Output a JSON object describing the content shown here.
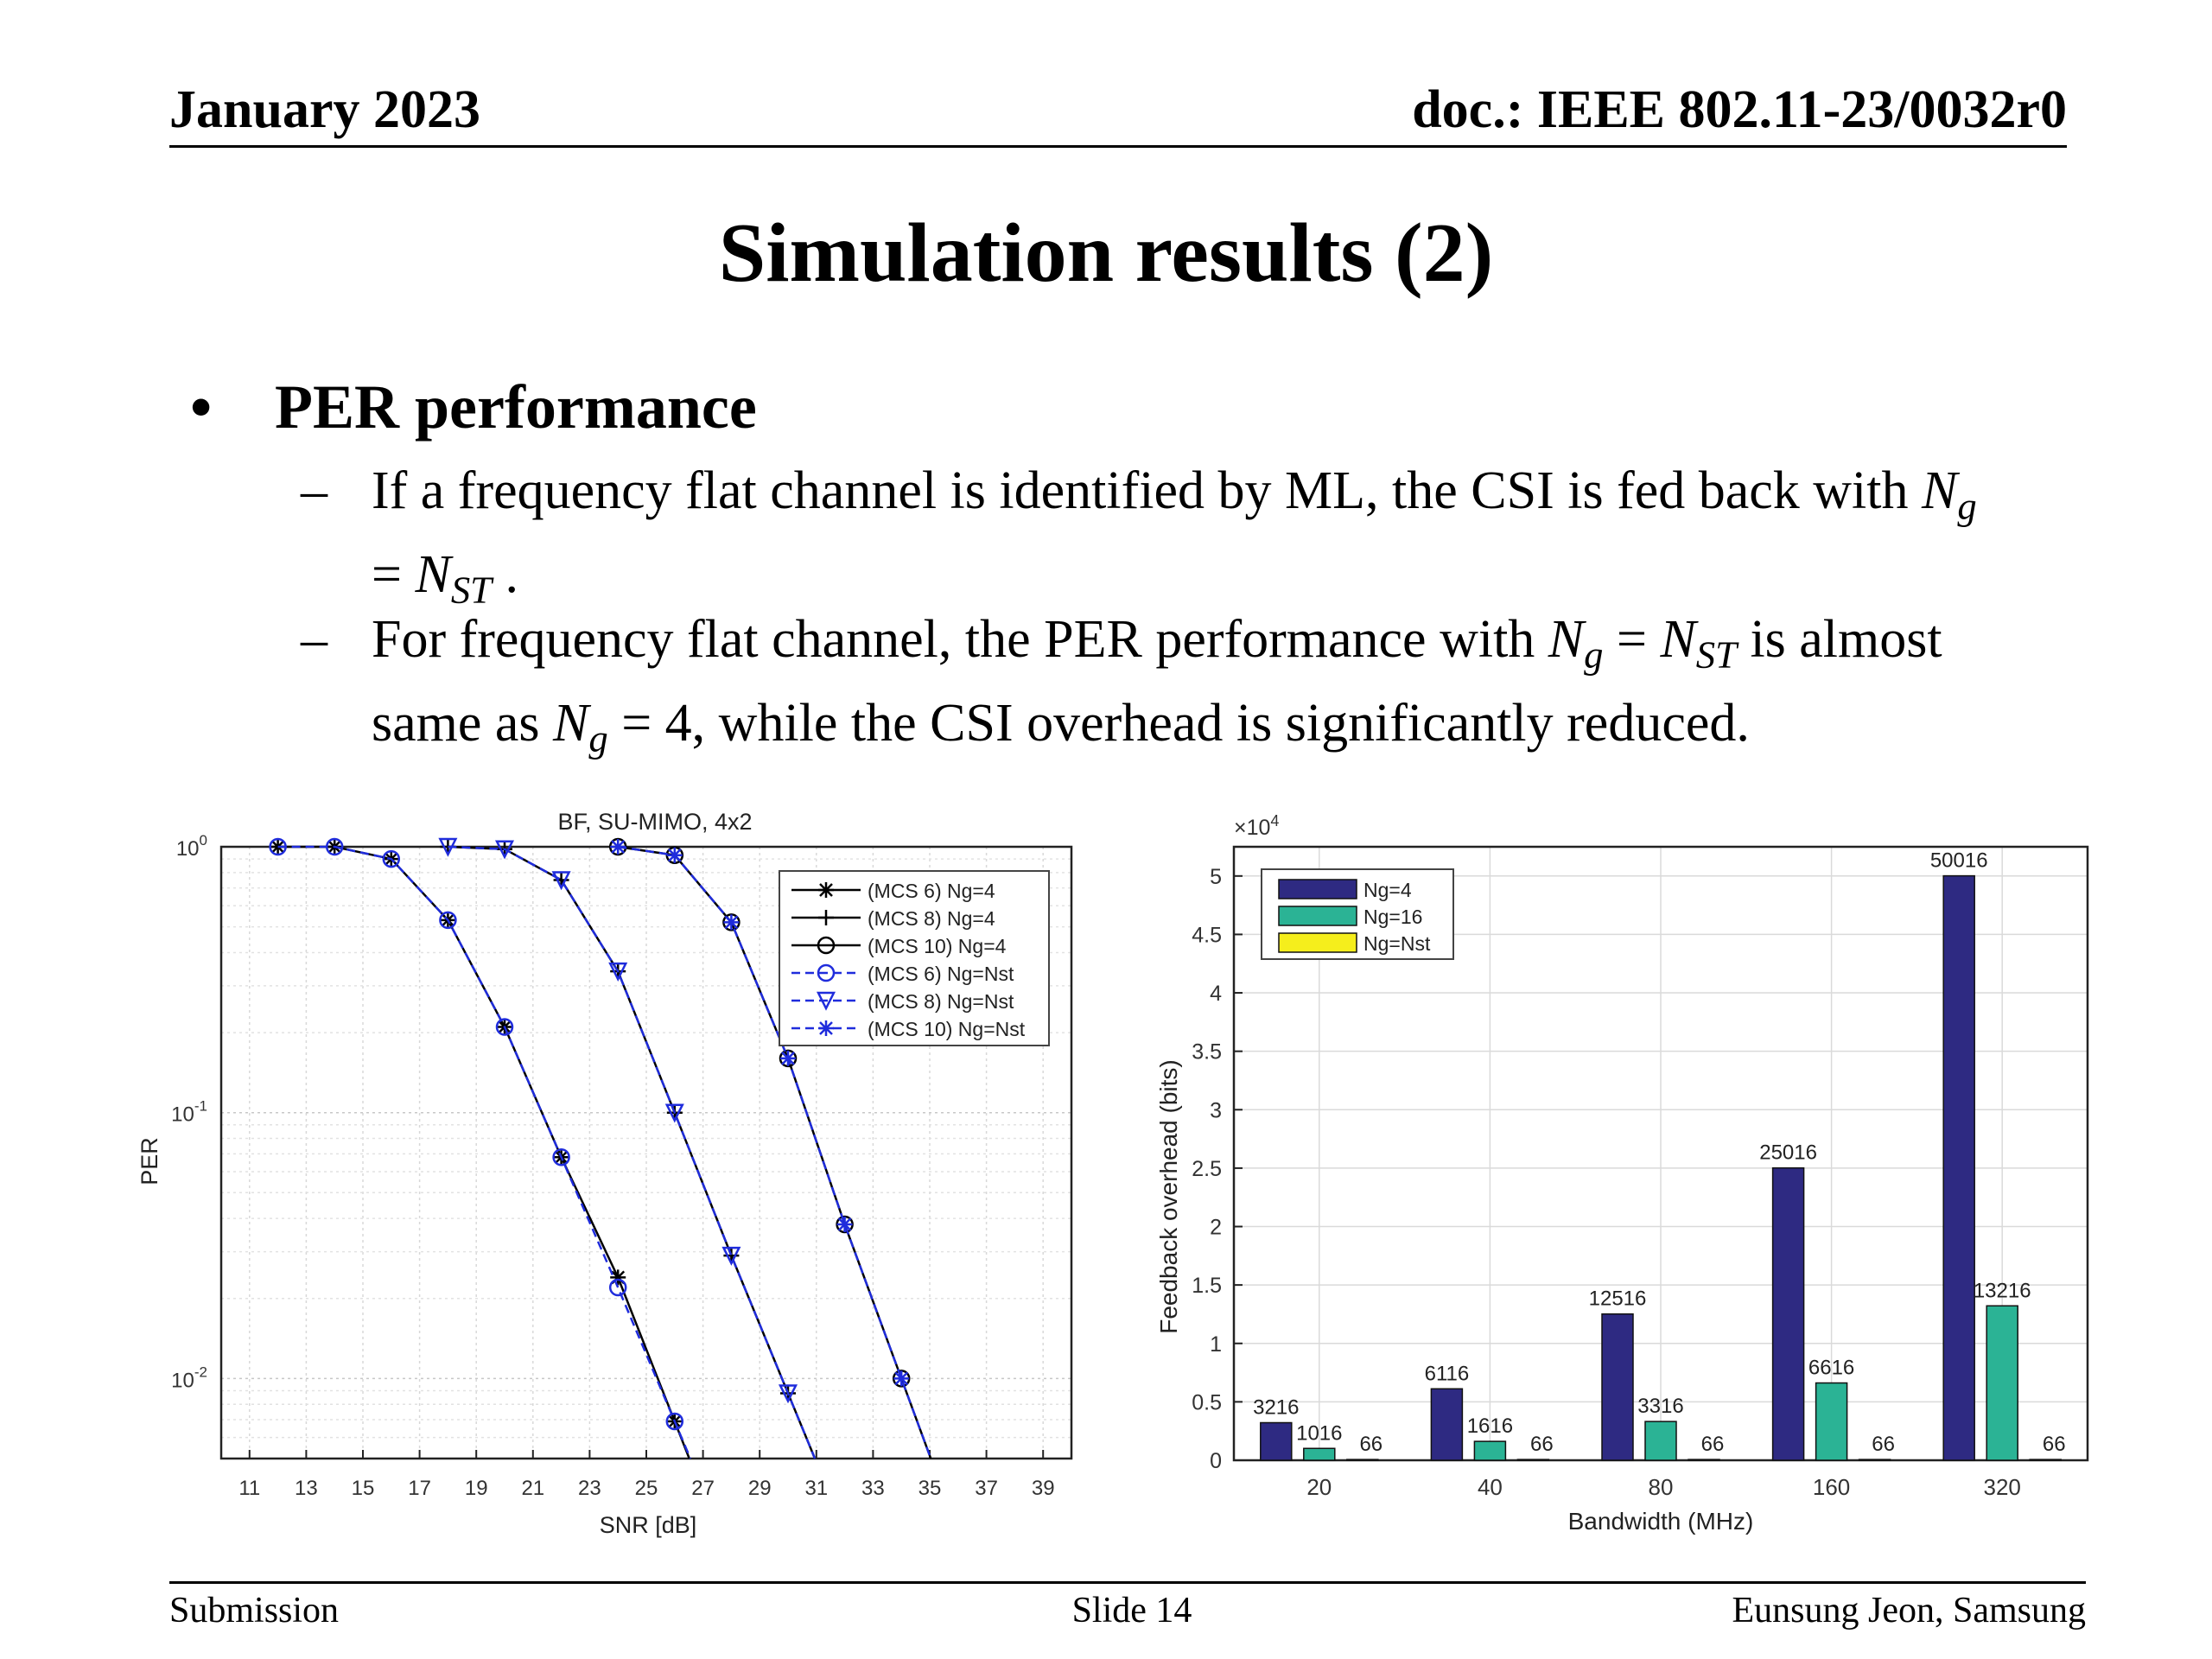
{
  "header": {
    "date": "January 2023",
    "doc": "doc.: IEEE 802.11-23/0032r0"
  },
  "slide": {
    "title": "Simulation results (2)",
    "bullet": "PER performance",
    "sub1": {
      "a": "If a frequency flat channel is identified by ML, the CSI is fed back with ",
      "b": "N",
      "c": "g",
      "d": "= ",
      "e": "N",
      "f": "ST",
      "g": " ."
    },
    "sub2": {
      "a": "For frequency flat channel, the PER performance with ",
      "b": "N",
      "c": "g",
      "d": " = ",
      "e": "N",
      "f": "ST",
      "g": " is almost",
      "h": "same as ",
      "i": "N",
      "j": "g",
      "k": " = 4, while the CSI overhead is significantly reduced."
    }
  },
  "footer": {
    "left": "Submission",
    "center": "Slide 14",
    "right": "Eunsung Jeon, Samsung"
  },
  "chart_data": [
    {
      "type": "line",
      "title": "BF, SU-MIMO, 4x2",
      "xlabel": "SNR [dB]",
      "ylabel": "PER",
      "xlim": [
        10,
        40
      ],
      "ylim": [
        0.005,
        1
      ],
      "yscale": "log",
      "grid": true,
      "xticks": [
        11,
        13,
        15,
        17,
        19,
        21,
        23,
        25,
        27,
        29,
        31,
        33,
        35,
        37,
        39
      ],
      "yticks": [
        {
          "base": "10",
          "exp": "0",
          "value": 1
        },
        {
          "base": "10",
          "exp": "-1",
          "value": 0.1
        },
        {
          "base": "10",
          "exp": "-2",
          "value": 0.01
        }
      ],
      "legend_position": "top-right",
      "series": [
        {
          "name": "(MCS 6) Ng=4",
          "color": "#000000",
          "dash": "",
          "marker": "asterisk",
          "x": [
            12,
            14,
            16,
            18,
            20,
            22,
            24,
            26
          ],
          "y": [
            1,
            1,
            0.9,
            0.53,
            0.21,
            0.068,
            0.024,
            0.0069
          ]
        },
        {
          "name": "(MCS 8) Ng=4",
          "color": "#000000",
          "dash": "",
          "marker": "plus",
          "x": [
            18,
            20,
            22,
            24,
            26,
            28,
            30
          ],
          "y": [
            1,
            0.98,
            0.75,
            0.34,
            0.1,
            0.029,
            0.0088
          ]
        },
        {
          "name": "(MCS 10) Ng=4",
          "color": "#000000",
          "dash": "",
          "marker": "circle",
          "x": [
            24,
            26,
            28,
            30,
            32,
            34
          ],
          "y": [
            1,
            0.93,
            0.52,
            0.16,
            0.038,
            0.01
          ]
        },
        {
          "name": "(MCS 6) Ng=Nst",
          "color": "#1f2cdc",
          "dash": "10 6",
          "marker": "circle",
          "x": [
            12,
            14,
            16,
            18,
            20,
            22,
            24,
            26
          ],
          "y": [
            1,
            1,
            0.9,
            0.53,
            0.21,
            0.068,
            0.022,
            0.0069
          ]
        },
        {
          "name": "(MCS 8) Ng=Nst",
          "color": "#1f2cdc",
          "dash": "10 6",
          "marker": "triangle",
          "x": [
            18,
            20,
            22,
            24,
            26,
            28,
            30
          ],
          "y": [
            1,
            0.98,
            0.75,
            0.34,
            0.1,
            0.029,
            0.0088
          ]
        },
        {
          "name": "(MCS 10) Ng=Nst",
          "color": "#1f2cdc",
          "dash": "10 6",
          "marker": "asterisk",
          "x": [
            24,
            26,
            28,
            30,
            32,
            34
          ],
          "y": [
            1,
            0.93,
            0.52,
            0.16,
            0.038,
            0.01
          ]
        }
      ]
    },
    {
      "type": "bar",
      "title": "",
      "xlabel": "Bandwidth (MHz)",
      "ylabel": "Feedback overhead (bits)",
      "multiplier": "×10",
      "multiplier_exp": "4",
      "categories": [
        "20",
        "40",
        "80",
        "160",
        "320"
      ],
      "ylim": [
        0,
        5.25
      ],
      "yticks": [
        "0",
        "0.5",
        "1",
        "1.5",
        "2",
        "2.5",
        "3",
        "3.5",
        "4",
        "4.5",
        "5"
      ],
      "grid": true,
      "legend_position": "top-left",
      "series": [
        {
          "name": "Ng=4",
          "color": "#2e2a82",
          "values": [
            3216,
            6116,
            12516,
            25016,
            50016
          ],
          "labels": [
            "3216",
            "6116",
            "12516",
            "25016",
            "50016"
          ]
        },
        {
          "name": "Ng=16",
          "color": "#2bb395",
          "values": [
            1016,
            1616,
            3316,
            6616,
            13216
          ],
          "labels": [
            "1016",
            "1616",
            "3316",
            "6616",
            "13216"
          ]
        },
        {
          "name": "Ng=Nst",
          "color": "#f5ee1c",
          "values": [
            66,
            66,
            66,
            66,
            66
          ],
          "labels": [
            "66",
            "66",
            "66",
            "66",
            "66"
          ]
        }
      ]
    }
  ]
}
